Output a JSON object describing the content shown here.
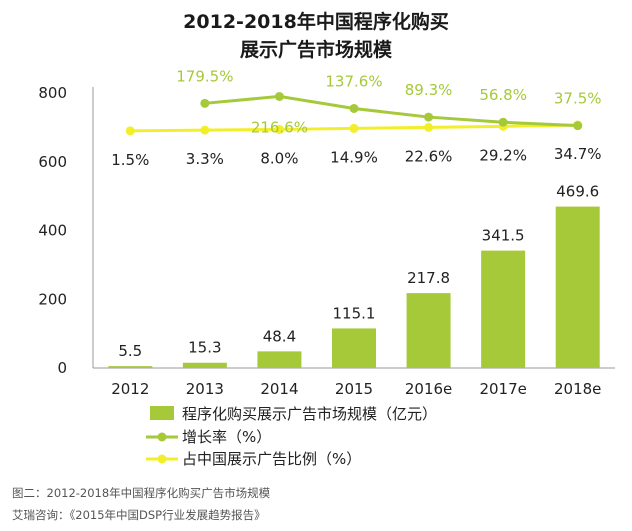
{
  "chart_data": {
    "type": "bar",
    "title_lines": [
      "2012-2018年中国程序化购买",
      "展示广告市场规模"
    ],
    "categories": [
      "2012",
      "2013",
      "2014",
      "2015",
      "2016e",
      "2017e",
      "2018e"
    ],
    "ylim": [
      0,
      800
    ],
    "yticks": [
      "0",
      "200",
      "400",
      "600",
      "800"
    ],
    "series": [
      {
        "name": "程序化购买展示广告市场规模（亿元）",
        "kind": "bar",
        "values": [
          5.5,
          15.3,
          48.4,
          115.1,
          217.8,
          341.5,
          469.6
        ],
        "labels": [
          "5.5",
          "15.3",
          "48.4",
          "115.1",
          "217.8",
          "341.5",
          "469.6"
        ],
        "color": "#a6c93a"
      },
      {
        "name": "增长率（%）",
        "kind": "line",
        "values": [
          null,
          179.5,
          216.6,
          137.6,
          89.3,
          56.8,
          37.5
        ],
        "labels": [
          "",
          "179.5%",
          "216.6%",
          "137.6%",
          "89.3%",
          "56.8%",
          "37.5%"
        ],
        "plotted_y": [
          null,
          770,
          790,
          755,
          730,
          715,
          705
        ],
        "color": "#a6c93a"
      },
      {
        "name": "占中国展示广告比例（%）",
        "kind": "line",
        "values": [
          1.5,
          3.3,
          8.0,
          14.9,
          22.6,
          29.2,
          34.7
        ],
        "labels": [
          "1.5%",
          "3.3%",
          "8.0%",
          "14.9%",
          "22.6%",
          "29.2%",
          "34.7%"
        ],
        "plotted_y": [
          690,
          692,
          694,
          697,
          700,
          703,
          707
        ],
        "color": "#f2ef2a"
      }
    ],
    "legend_position": "bottom"
  },
  "caption": {
    "figure": "图二：2012-2018年中国程序化购买广告市场规模",
    "source": "艾瑞咨询：《2015年中国DSP行业发展趋势报告》"
  }
}
